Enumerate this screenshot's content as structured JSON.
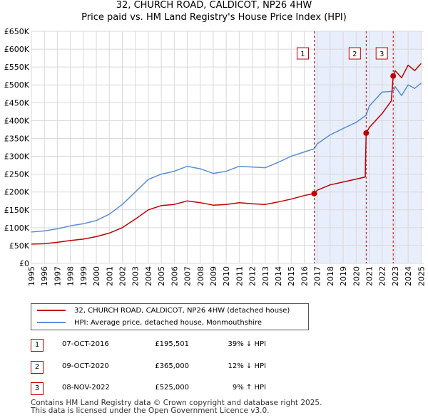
{
  "chart_data": {
    "type": "line",
    "title": "32, CHURCH ROAD, CALDICOT, NP26 4HW",
    "subtitle": "Price paid vs. HM Land Registry's House Price Index (HPI)",
    "xlabel": "",
    "ylabel": "",
    "xlim": [
      1995,
      2025.2
    ],
    "ylim": [
      0,
      650000
    ],
    "grid": true,
    "y_ticks": [
      0,
      50000,
      100000,
      150000,
      200000,
      250000,
      300000,
      350000,
      400000,
      450000,
      500000,
      550000,
      600000,
      650000
    ],
    "y_tick_labels": [
      "£0",
      "£50K",
      "£100K",
      "£150K",
      "£200K",
      "£250K",
      "£300K",
      "£350K",
      "£400K",
      "£450K",
      "£500K",
      "£550K",
      "£600K",
      "£650K"
    ],
    "x_ticks": [
      1995,
      1996,
      1997,
      1998,
      1999,
      2000,
      2001,
      2002,
      2003,
      2004,
      2005,
      2006,
      2007,
      2008,
      2009,
      2010,
      2011,
      2012,
      2013,
      2014,
      2015,
      2016,
      2017,
      2018,
      2019,
      2020,
      2021,
      2022,
      2023,
      2024,
      2025
    ],
    "x_tick_labels": [
      "1995",
      "1996",
      "1997",
      "1998",
      "1999",
      "2000",
      "2001",
      "2002",
      "2003",
      "2004",
      "2005",
      "2006",
      "2007",
      "2008",
      "2009",
      "2010",
      "2011",
      "2012",
      "2013",
      "2014",
      "2015",
      "2016",
      "2017",
      "2018",
      "2019",
      "2020",
      "2021",
      "2022",
      "2023",
      "2024",
      "2025"
    ],
    "legend_position": "below",
    "series": [
      {
        "name": "32, CHURCH ROAD, CALDICOT, NP26 4HW (detached house)",
        "color": "#c00000",
        "x": [
          1995,
          1996,
          1997,
          1998,
          1999,
          2000,
          2001,
          2002,
          2003,
          2004,
          2005,
          2006,
          2007,
          2008,
          2009,
          2010,
          2011,
          2012,
          2013,
          2014,
          2015,
          2016,
          2016.77,
          2017,
          2018,
          2019,
          2020,
          2020.7,
          2020.77,
          2021,
          2022,
          2022.7,
          2022.85,
          2023,
          2023.5,
          2024,
          2024.5,
          2025
        ],
        "values": [
          54000,
          55000,
          59000,
          64000,
          68000,
          75000,
          85000,
          100000,
          124000,
          150000,
          162000,
          165000,
          175000,
          170000,
          163000,
          165000,
          170000,
          167000,
          165000,
          172000,
          180000,
          190000,
          195501,
          205000,
          220000,
          228000,
          236000,
          242000,
          365000,
          380000,
          420000,
          455000,
          525000,
          540000,
          520000,
          555000,
          540000,
          560000
        ]
      },
      {
        "name": "HPI: Average price, detached house, Monmouthshire",
        "color": "#5b8fd4",
        "x": [
          1995,
          1996,
          1997,
          1998,
          1999,
          2000,
          2001,
          2002,
          2003,
          2004,
          2005,
          2006,
          2007,
          2008,
          2009,
          2010,
          2011,
          2012,
          2013,
          2014,
          2015,
          2016,
          2016.77,
          2017,
          2018,
          2019,
          2020,
          2020.77,
          2021,
          2022,
          2022.85,
          2023,
          2023.5,
          2024,
          2024.5,
          2025
        ],
        "values": [
          88000,
          91000,
          97000,
          105000,
          111000,
          120000,
          138000,
          165000,
          200000,
          235000,
          250000,
          258000,
          272000,
          265000,
          252000,
          258000,
          272000,
          270000,
          268000,
          283000,
          300000,
          312000,
          321000,
          335000,
          360000,
          378000,
          395000,
          415000,
          440000,
          480000,
          482000,
          495000,
          470000,
          500000,
          490000,
          505000
        ]
      }
    ],
    "transactions": [
      {
        "label": "1",
        "x": 2016.77,
        "value": 195501
      },
      {
        "label": "2",
        "x": 2020.77,
        "value": 365000
      },
      {
        "label": "3",
        "x": 2022.85,
        "value": 525000
      }
    ],
    "shaded_start": 2016.77,
    "shaded_end": 2025
  },
  "legend": {
    "items": [
      {
        "label": "32, CHURCH ROAD, CALDICOT, NP26 4HW (detached house)",
        "color": "#c00000"
      },
      {
        "label": "HPI: Average price, detached house, Monmouthshire",
        "color": "#5b8fd4"
      }
    ]
  },
  "table": {
    "rows": [
      {
        "num": "1",
        "date": "07-OCT-2016",
        "price": "£195,501",
        "pct": "39% ↓ HPI"
      },
      {
        "num": "2",
        "date": "09-OCT-2020",
        "price": "£365,000",
        "pct": "12% ↓ HPI"
      },
      {
        "num": "3",
        "date": "08-NOV-2022",
        "price": "£525,000",
        "pct": "9% ↑ HPI"
      }
    ]
  },
  "footer": {
    "line1": "Contains HM Land Registry data © Crown copyright and database right 2025.",
    "line2": "This data is licensed under the Open Government Licence v3.0."
  }
}
